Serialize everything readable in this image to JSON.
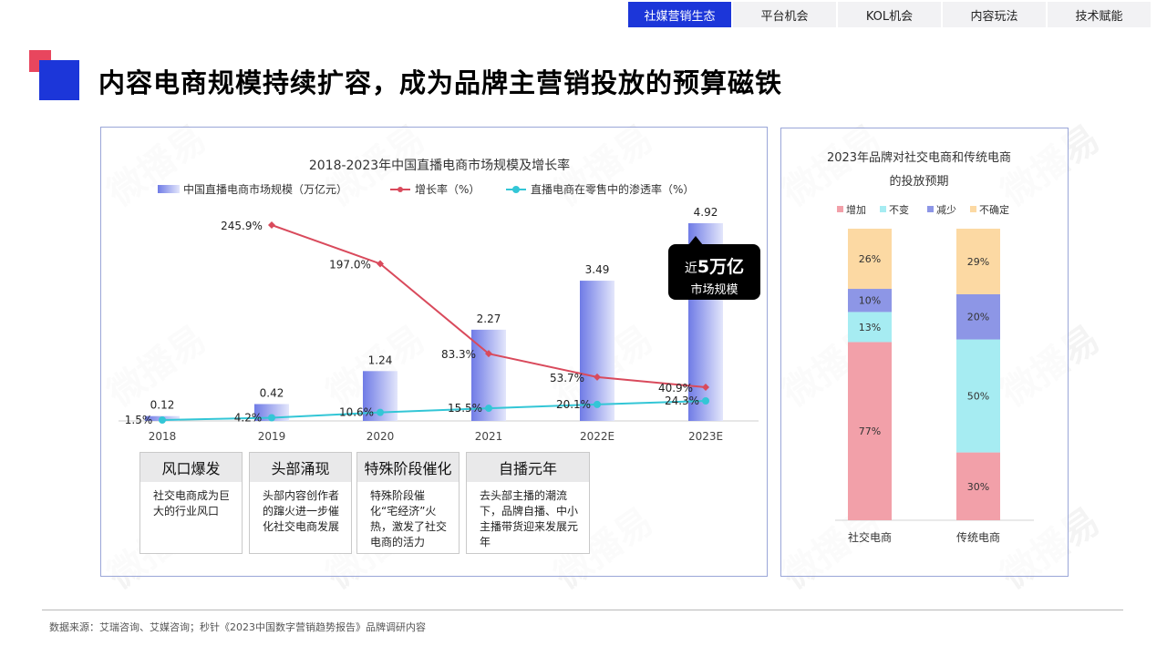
{
  "nav": {
    "tabs": [
      {
        "label": "社媒营销生态",
        "active": true
      },
      {
        "label": "平台机会",
        "active": false
      },
      {
        "label": "KOL机会",
        "active": false
      },
      {
        "label": "内容玩法",
        "active": false
      },
      {
        "label": "技术赋能",
        "active": false
      }
    ]
  },
  "page": {
    "title": "内容电商规模持续扩容，成为品牌主营销投放的预算磁铁",
    "watermark": "微播易"
  },
  "colors": {
    "brand_blue": "#1c36d9",
    "accent_red": "#e8465e",
    "bar_blue": "#7d87e8",
    "growth_line": "#d94a5c",
    "penetration_line": "#33c6d6",
    "increase": "#f2a0a9",
    "unchanged": "#a6ecf2",
    "decrease": "#8d96e6",
    "uncertain": "#fcd9a3"
  },
  "chart_data": [
    {
      "type": "bar",
      "title": "2018-2023年中国直播电商市场规模及增长率",
      "categories": [
        "2018",
        "2019",
        "2020",
        "2021",
        "2022E",
        "2023E"
      ],
      "series": [
        {
          "name": "中国直播电商市场规模（万亿元）",
          "kind": "bar",
          "values": [
            0.12,
            0.42,
            1.24,
            2.27,
            3.49,
            4.92
          ],
          "labels": [
            "0.12",
            "0.42",
            "1.24",
            "2.27",
            "3.49",
            "4.92"
          ]
        },
        {
          "name": "增长率（%）",
          "kind": "line",
          "values": [
            null,
            245.9,
            197.0,
            83.3,
            53.7,
            40.9
          ],
          "labels": [
            "",
            "245.9%",
            "197.0%",
            "83.3%",
            "53.7%",
            "40.9%"
          ]
        },
        {
          "name": "直播电商在零售中的渗透率（%）",
          "kind": "line",
          "values": [
            1.5,
            4.2,
            10.6,
            15.5,
            20.1,
            24.3
          ],
          "labels": [
            "1.5%",
            "4.2%",
            "10.6%",
            "15.5%",
            "20.1%",
            "24.3%"
          ]
        }
      ],
      "callout": {
        "prefix": "近",
        "value": "5万亿",
        "suffix": "市场规模"
      },
      "stages": [
        {
          "title": "风口爆发",
          "desc": "社交电商成为巨大的行业风口"
        },
        {
          "title": "头部涌现",
          "desc": "头部内容创作者的蹿火进一步催化社交电商发展"
        },
        {
          "title": "特殊阶段催化",
          "desc": "特殊阶段催化“宅经济”火热，激发了社交电商的活力"
        },
        {
          "title": "自播元年",
          "desc": "去头部主播的潮流下，品牌自播、中小主播带货迎来发展元年"
        }
      ]
    },
    {
      "type": "bar",
      "stacked": true,
      "title_line1": "2023年品牌对社交电商和传统电商",
      "title_line2": "的投放预期",
      "categories": [
        "社交电商",
        "传统电商"
      ],
      "series": [
        {
          "name": "增加",
          "values": [
            77,
            30
          ]
        },
        {
          "name": "不变",
          "values": [
            13,
            50
          ]
        },
        {
          "name": "减少",
          "values": [
            10,
            20
          ]
        },
        {
          "name": "不确定",
          "values": [
            26,
            29
          ]
        }
      ]
    }
  ],
  "footer": {
    "source": "数据来源：艾瑞咨询、艾媒咨询；秒针《2023中国数字营销趋势报告》品牌调研内容"
  }
}
